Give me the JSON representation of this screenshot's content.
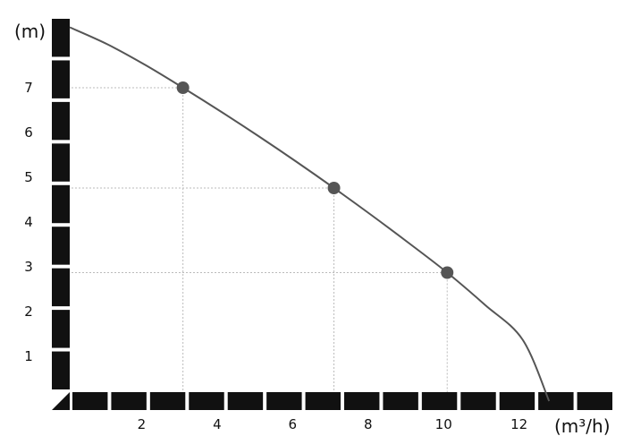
{
  "chart_data": {
    "type": "line",
    "title": "",
    "xlabel": "(m³/h)",
    "ylabel": "(m)",
    "xlim": [
      0,
      14.4
    ],
    "ylim": [
      0,
      8.4
    ],
    "x_ticks": [
      2,
      4,
      6,
      8,
      10,
      12
    ],
    "y_ticks": [
      1,
      2,
      3,
      4,
      5,
      6,
      7
    ],
    "grid": false,
    "legend": "none",
    "curve_color": "#555555",
    "marker_color": "#555555",
    "axis_color": "#111111",
    "series": [
      {
        "x": [
          0,
          1,
          2,
          3,
          4,
          5,
          6,
          7,
          8,
          9,
          10,
          11,
          12,
          12.7
        ],
        "y": [
          8.35,
          7.97,
          7.51,
          7.0,
          6.47,
          5.92,
          5.35,
          4.76,
          4.15,
          3.52,
          2.87,
          2.15,
          1.37,
          0
        ]
      }
    ],
    "highlighted_points": [
      {
        "x": 3,
        "y": 7.0
      },
      {
        "x": 7,
        "y": 4.76
      },
      {
        "x": 10,
        "y": 2.87
      }
    ]
  }
}
